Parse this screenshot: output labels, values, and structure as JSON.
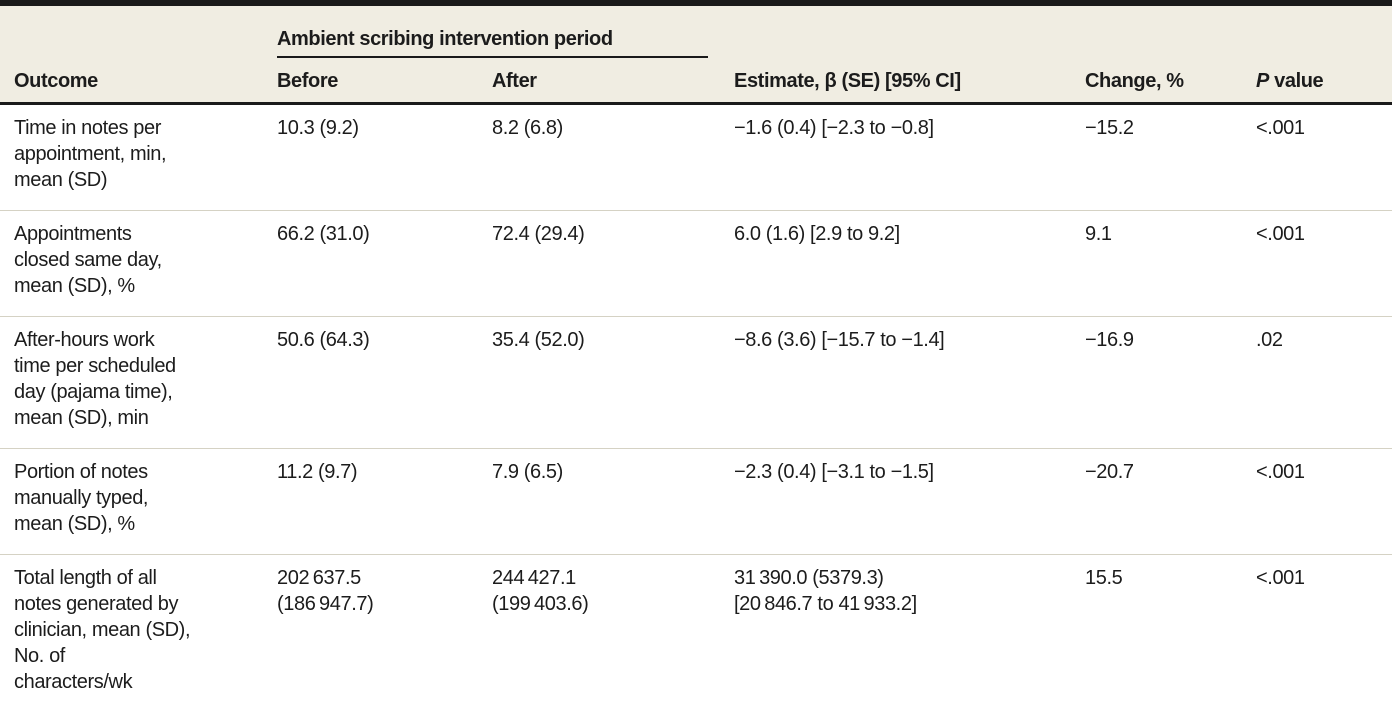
{
  "colors": {
    "header_background": "#F0EDE2",
    "rule_black": "#1A1A1A",
    "row_separator": "#D5D2C4",
    "text": "#1C1C1C"
  },
  "table": {
    "spanner": "Ambient scribing intervention period",
    "columns": {
      "outcome": "Outcome",
      "before": "Before",
      "after": "After",
      "estimate": "Estimate, β (SE) [95% CI]",
      "change": "Change, %",
      "p_italic": "P",
      "p_rest": " value"
    },
    "rows": [
      {
        "outcome": "Time in notes per\nappointment, min,\nmean (SD)",
        "before": "10.3 (9.2)",
        "after": "8.2 (6.8)",
        "estimate": "−1.6 (0.4) [−2.3 to −0.8]",
        "change": "−15.2",
        "p": "<.001"
      },
      {
        "outcome": "Appointments\nclosed same day,\nmean (SD), %",
        "before": "66.2 (31.0)",
        "after": "72.4 (29.4)",
        "estimate": "6.0 (1.6) [2.9 to 9.2]",
        "change": "9.1",
        "p": "<.001"
      },
      {
        "outcome": "After-hours work\ntime per scheduled\nday (pajama time),\nmean (SD), min",
        "before": "50.6 (64.3)",
        "after": "35.4 (52.0)",
        "estimate": "−8.6 (3.6) [−15.7 to −1.4]",
        "change": "−16.9",
        "p": ".02"
      },
      {
        "outcome": "Portion of notes\nmanually typed,\nmean (SD), %",
        "before": "11.2 (9.7)",
        "after": "7.9 (6.5)",
        "estimate": "−2.3 (0.4) [−3.1 to −1.5]",
        "change": "−20.7",
        "p": "<.001"
      },
      {
        "outcome": "Total length of all\nnotes generated by\nclinician, mean (SD),\nNo. of\ncharacters/wk",
        "before": "202 637.5\n(186 947.7)",
        "after": "244 427.1\n(199 403.6)",
        "estimate": "31 390.0 (5379.3)\n[20 846.7 to 41 933.2]",
        "change": "15.5",
        "p": "<.001"
      }
    ]
  }
}
